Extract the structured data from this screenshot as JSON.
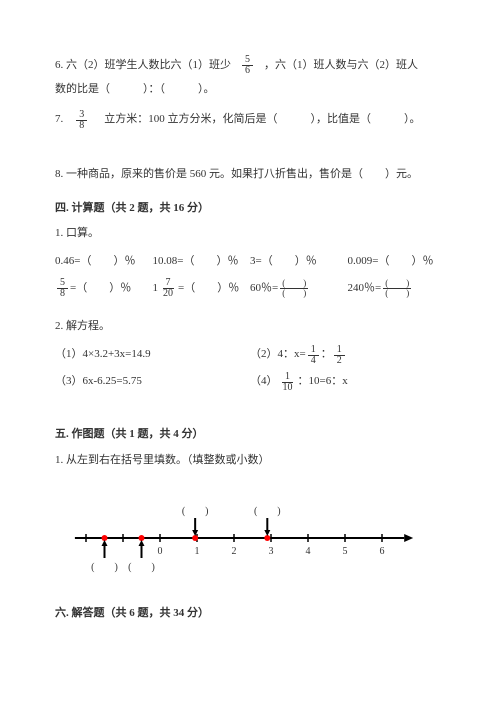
{
  "q6": {
    "part1": "6. 六（2）班学生人数比六（1）班少",
    "frac_num": "5",
    "frac_den": "6",
    "part2": "，六（1）班人数与六（2）班人",
    "line2": "数的比是（　　　）：（　　　）。"
  },
  "q7": {
    "prefix": "7.",
    "frac_num": "3",
    "frac_den": "8",
    "text": "立方米：100 立方分米，化简后是（　　　），比值是（　　　）。"
  },
  "q8": {
    "text": "8. 一种商品，原来的售价是 560 元。如果打八折售出，售价是（　　）元。"
  },
  "s4": {
    "header": "四. 计算题（共 2 题，共 16 分）",
    "q1_label": "1. 口算。",
    "row1": {
      "c1": "0.46=（　　）％",
      "c2": "10.08=（　　）％",
      "c3": "3=（　　）％",
      "c4": "0.009=（　　）％"
    },
    "row2": {
      "c1_num": "5",
      "c1_den": "8",
      "c1_tail": " =（　　）％",
      "c2_pre": "1",
      "c2_num": "7",
      "c2_den": "20",
      "c2_tail": "=（　　）％",
      "c3_pre": "60％=",
      "c3_num": "(　　)",
      "c3_den": "(　　)",
      "c4_pre": "240％=",
      "c4_num": "(　　)",
      "c4_den": "(　　)"
    },
    "q2_label": "2. 解方程。",
    "eq": {
      "e1": "（1）4×3.2+3x=14.9",
      "e2_pre": "（2）4：x=",
      "e2_n1": "1",
      "e2_d1": "4",
      "e2_sep": "：",
      "e2_n2": "1",
      "e2_d2": "2",
      "e3": "（3）6x-6.25=5.75",
      "e4_pre": "（4）",
      "e4_n": "1",
      "e4_d": "10",
      "e4_tail": "：10=6：x"
    }
  },
  "s5": {
    "header": "五. 作图题（共 1 题，共 4 分）",
    "q1": "1. 从左到右在括号里填数。（填整数或小数）",
    "numberline": {
      "start": 0,
      "end": 6,
      "ticks": [
        0,
        1,
        2,
        3,
        4,
        5,
        6
      ],
      "top_blanks": [
        0.95,
        2.9
      ],
      "bottom_blanks": [
        -1.5,
        -0.5
      ],
      "red_points": [
        -1.5,
        -0.5,
        0.95,
        2.9
      ],
      "left_extent": -2.3,
      "right_extent": 6.6,
      "axis_color": "#000000",
      "point_color": "#ff0000",
      "bg": "#ffffff"
    }
  },
  "s6": {
    "header": "六. 解答题（共 6 题，共 34 分）"
  }
}
